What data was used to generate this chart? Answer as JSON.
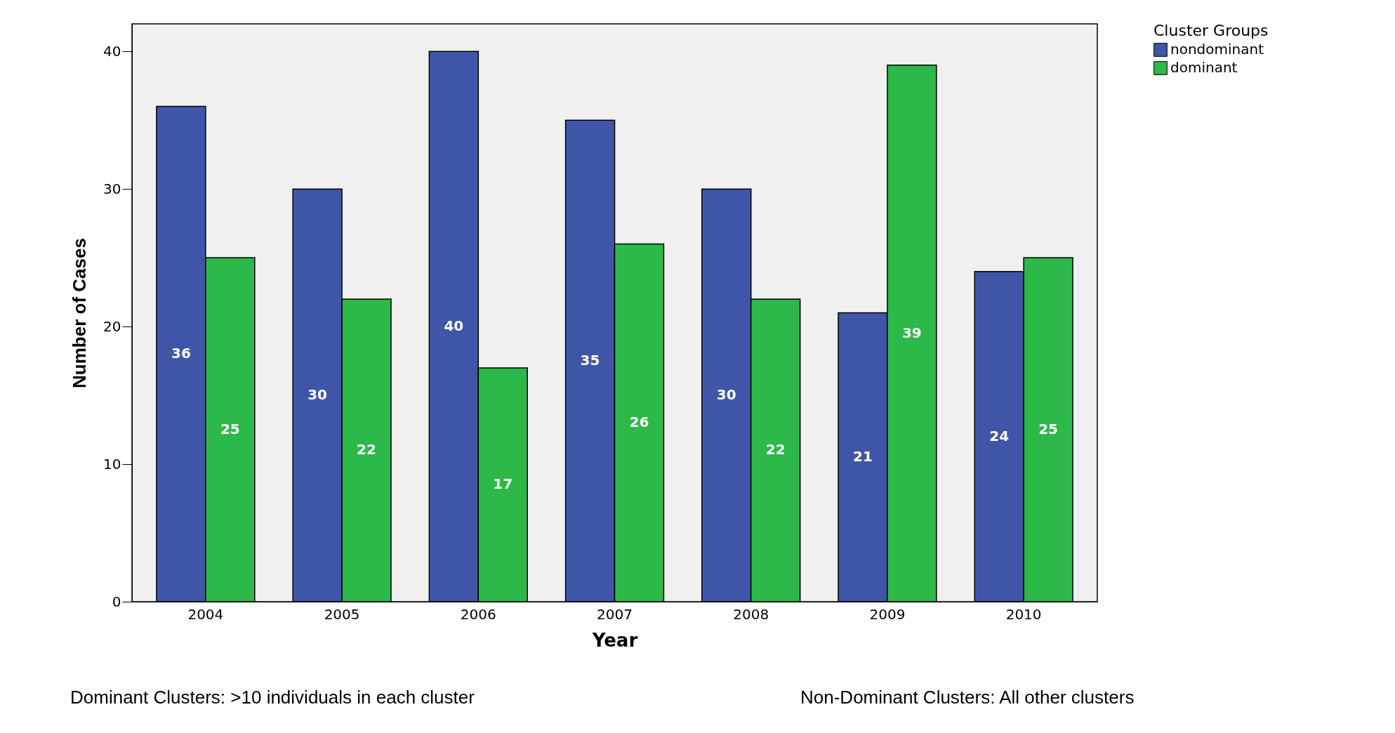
{
  "chart_data": {
    "type": "bar",
    "xlabel": "Year",
    "ylabel": "Number of Cases",
    "legend_title": "Cluster Groups",
    "categories": [
      "2004",
      "2005",
      "2006",
      "2007",
      "2008",
      "2009",
      "2010"
    ],
    "series": [
      {
        "name": "nondominant",
        "color": "#3f56a8",
        "values": [
          36,
          30,
          40,
          35,
          30,
          21,
          24
        ]
      },
      {
        "name": "dominant",
        "color": "#2db84a",
        "values": [
          25,
          22,
          17,
          26,
          22,
          39,
          25
        ]
      }
    ],
    "ylim": [
      0,
      42
    ],
    "yticks": [
      0,
      10,
      20,
      30,
      40
    ],
    "grid": false,
    "legend": "top right",
    "data_labels": true,
    "annotations": [
      "Dominant Clusters: >10 individuals in each cluster",
      "Non-Dominant Clusters: All other clusters"
    ]
  }
}
